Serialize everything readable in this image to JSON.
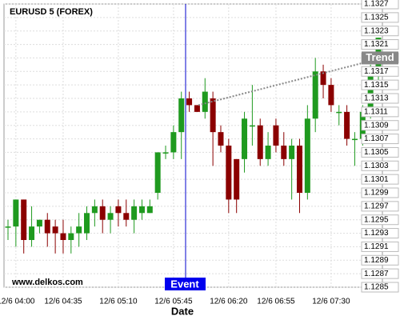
{
  "chart_data": {
    "type": "candlestick",
    "title": "EURUSD 5 (FOREX)",
    "x_label": "Date",
    "watermark": "www.delkos.com",
    "categories": [
      null,
      "12/6 04:00",
      null,
      null,
      null,
      null,
      null,
      "12/6 04:35",
      null,
      null,
      null,
      null,
      null,
      null,
      "12/6 05:10",
      null,
      null,
      null,
      null,
      null,
      null,
      "12/6 05:45",
      null,
      null,
      null,
      null,
      null,
      null,
      "12/6 06:20",
      null,
      null,
      null,
      null,
      null,
      "12/6 06:55",
      null,
      null,
      null,
      null,
      null,
      null,
      "12/6 07:30",
      null,
      null,
      null,
      null,
      null,
      null
    ],
    "open": [
      1.1294,
      1.1294,
      1.1298,
      1.1292,
      1.1294,
      1.1295,
      1.1294,
      1.1293,
      1.1292,
      1.1293,
      1.1293,
      1.1296,
      1.1297,
      1.1295,
      1.1297,
      1.1296,
      1.1295,
      1.1296,
      1.1296,
      1.1299,
      1.1305,
      1.1305,
      1.1308,
      1.1313,
      1.1312,
      1.1311,
      1.1313,
      1.1308,
      1.1306,
      1.1304,
      1.1304,
      1.1309,
      1.1309,
      1.1304,
      1.1309,
      1.1306,
      1.1304,
      1.1306,
      1.1299,
      1.131,
      1.1317,
      1.1315,
      1.1311,
      1.1311,
      1.1307,
      1.1307,
      1.1311,
      1.1317
    ],
    "high": [
      1.1295,
      1.1298,
      1.1298,
      1.1297,
      1.1295,
      1.1296,
      1.1295,
      1.1295,
      1.1294,
      1.1296,
      1.1297,
      1.1298,
      1.1298,
      1.1297,
      1.1298,
      1.1298,
      1.1298,
      1.1298,
      1.1298,
      1.1305,
      1.1306,
      1.1309,
      1.1314,
      1.1314,
      1.1312,
      1.1316,
      1.1314,
      1.1309,
      1.1307,
      1.1304,
      1.1311,
      1.1315,
      1.131,
      1.1308,
      1.131,
      1.1308,
      1.1307,
      1.1307,
      1.1312,
      1.1319,
      1.1318,
      1.1316,
      1.1312,
      1.1312,
      1.1308,
      1.1312,
      1.1318,
      1.1322
    ],
    "low": [
      1.1292,
      1.1291,
      1.129,
      1.1291,
      1.1293,
      1.1291,
      1.129,
      1.129,
      1.129,
      1.1291,
      1.1292,
      1.1294,
      1.1293,
      1.1293,
      1.1294,
      1.1294,
      1.1293,
      1.1295,
      1.1296,
      1.1298,
      1.1304,
      1.1304,
      1.1304,
      1.1311,
      1.1311,
      1.131,
      1.1303,
      1.1305,
      1.1296,
      1.1296,
      1.1302,
      1.1306,
      1.1303,
      1.1303,
      1.1305,
      1.1303,
      1.1298,
      1.1296,
      1.1298,
      1.1308,
      1.1313,
      1.1311,
      1.1309,
      1.1306,
      1.1303,
      1.1306,
      1.131,
      1.1315
    ],
    "close": [
      1.1294,
      1.1298,
      1.1292,
      1.1294,
      1.1295,
      1.1293,
      1.1293,
      1.1292,
      1.1293,
      1.1294,
      1.1296,
      1.1297,
      1.1295,
      1.1296,
      1.1296,
      1.1295,
      1.1297,
      1.1297,
      1.1297,
      1.1305,
      1.1305,
      1.1308,
      1.1313,
      1.1312,
      1.1311,
      1.1314,
      1.1308,
      1.1306,
      1.1298,
      1.1298,
      1.131,
      1.1309,
      1.1304,
      1.1306,
      1.1306,
      1.1304,
      1.1306,
      1.1299,
      1.131,
      1.1317,
      1.1315,
      1.1312,
      1.1311,
      1.1307,
      1.1307,
      1.1311,
      1.1317,
      1.1322
    ],
    "up_color": "#1f9a1f",
    "down_color": "#8b0000",
    "ylim": [
      1.1285,
      1.1327
    ],
    "yticks": [
      1.1285,
      1.1287,
      1.1289,
      1.1291,
      1.1293,
      1.1295,
      1.1297,
      1.1299,
      1.1301,
      1.1303,
      1.1305,
      1.1307,
      1.1309,
      1.1311,
      1.1313,
      1.1315,
      1.1317,
      1.1319,
      1.1321,
      1.1323,
      1.1325,
      1.1327
    ],
    "grid": true,
    "event": {
      "label": "Event"
    },
    "trend": {
      "label": "Trend",
      "start": 1.1312,
      "end": 1.1319
    }
  }
}
